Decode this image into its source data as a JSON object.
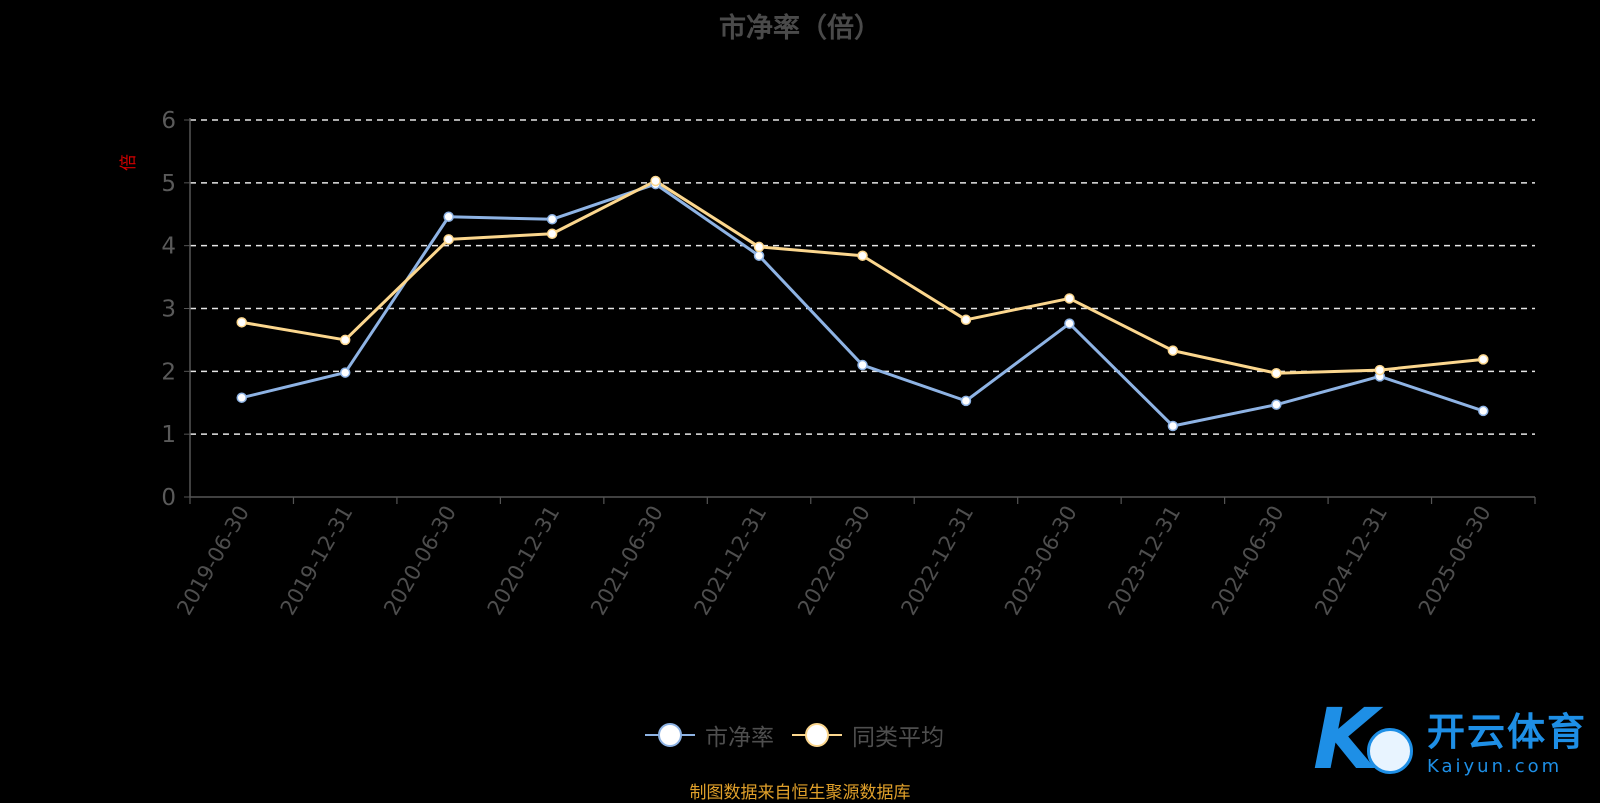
{
  "chart_data": {
    "type": "line",
    "title": "市净率（倍）",
    "ylabel": "倍",
    "ylim": [
      0,
      6
    ],
    "yticks": [
      "0",
      "1",
      "2",
      "3",
      "4",
      "5",
      "6"
    ],
    "grid": true,
    "legend_position": "bottom",
    "categories": [
      "2019-06-30",
      "2019-12-31",
      "2020-06-30",
      "2020-12-31",
      "2021-06-30",
      "2021-12-31",
      "2022-06-30",
      "2022-12-31",
      "2023-06-30",
      "2023-12-31",
      "2024-06-30",
      "2024-12-31",
      "2025-06-30"
    ],
    "series": [
      {
        "name": "市净率",
        "color": "#8eb3e4",
        "values": [
          1.58,
          1.98,
          4.46,
          4.42,
          4.98,
          3.84,
          2.1,
          1.53,
          2.76,
          1.13,
          1.47,
          1.92,
          1.37
        ]
      },
      {
        "name": "同类平均",
        "color": "#fcd78e",
        "values": [
          2.78,
          2.5,
          4.1,
          4.19,
          5.03,
          3.98,
          3.84,
          2.82,
          3.16,
          2.33,
          1.97,
          2.02,
          2.19
        ]
      }
    ]
  },
  "source_note": "制图数据来自恒生聚源数据库",
  "watermark": {
    "brand_cn": "开云体育",
    "brand_en": "Kaiyun.com"
  }
}
